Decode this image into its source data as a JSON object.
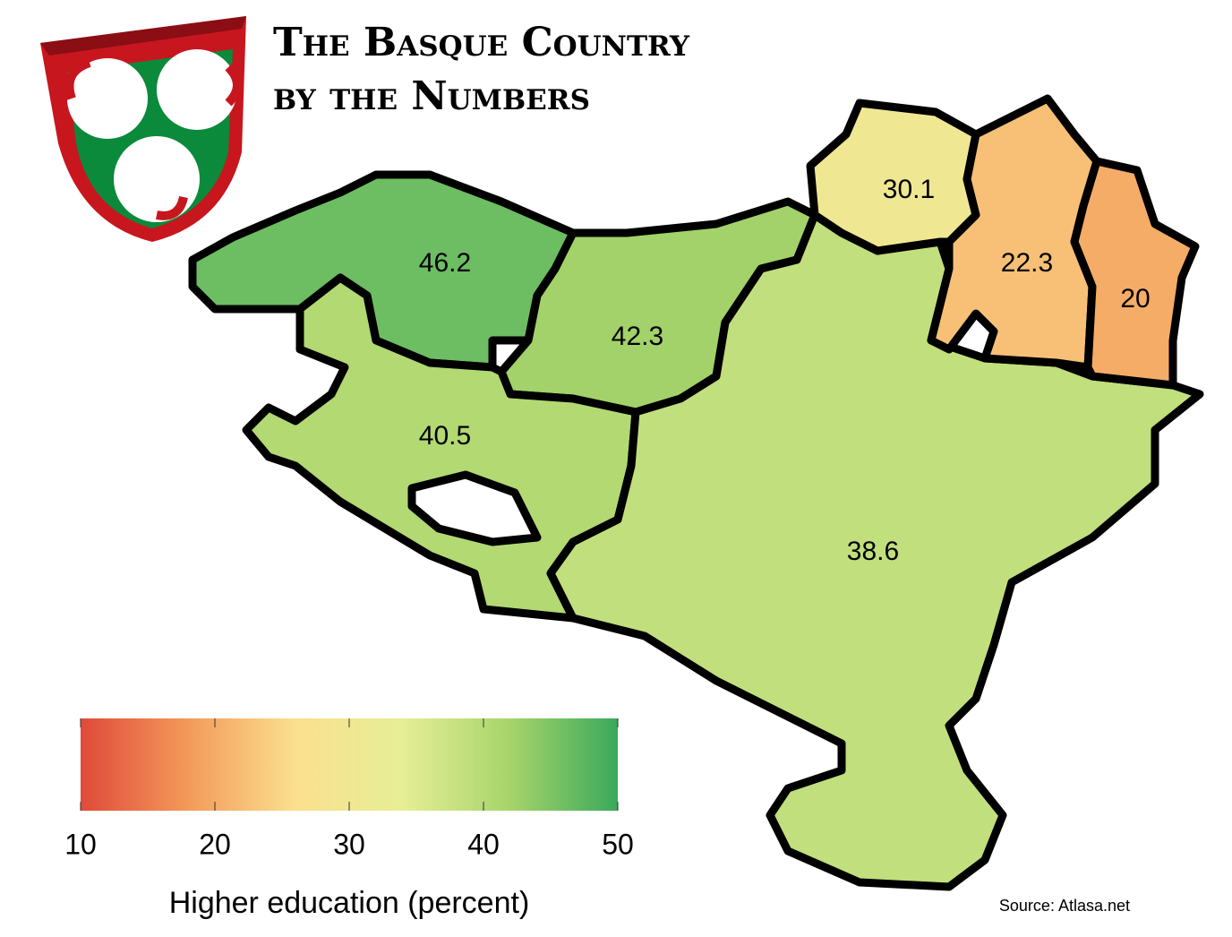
{
  "title": [
    "The Basque Country",
    "by the Numbers"
  ],
  "map": {
    "regions": [
      46.2,
      42.3,
      40.5,
      38.6,
      30.1,
      22.3,
      20
    ]
  },
  "colorbar": {
    "range": [
      10,
      50
    ],
    "ticks": [
      10,
      20,
      30,
      40,
      50
    ],
    "colors": [
      "#e04a3a",
      "#f39a5a",
      "#fbe08f",
      "#e6ee96",
      "#a6d46a",
      "#3aa95c"
    ],
    "label": "Higher education (percent)"
  },
  "source": "Source: Atlasa.net"
}
